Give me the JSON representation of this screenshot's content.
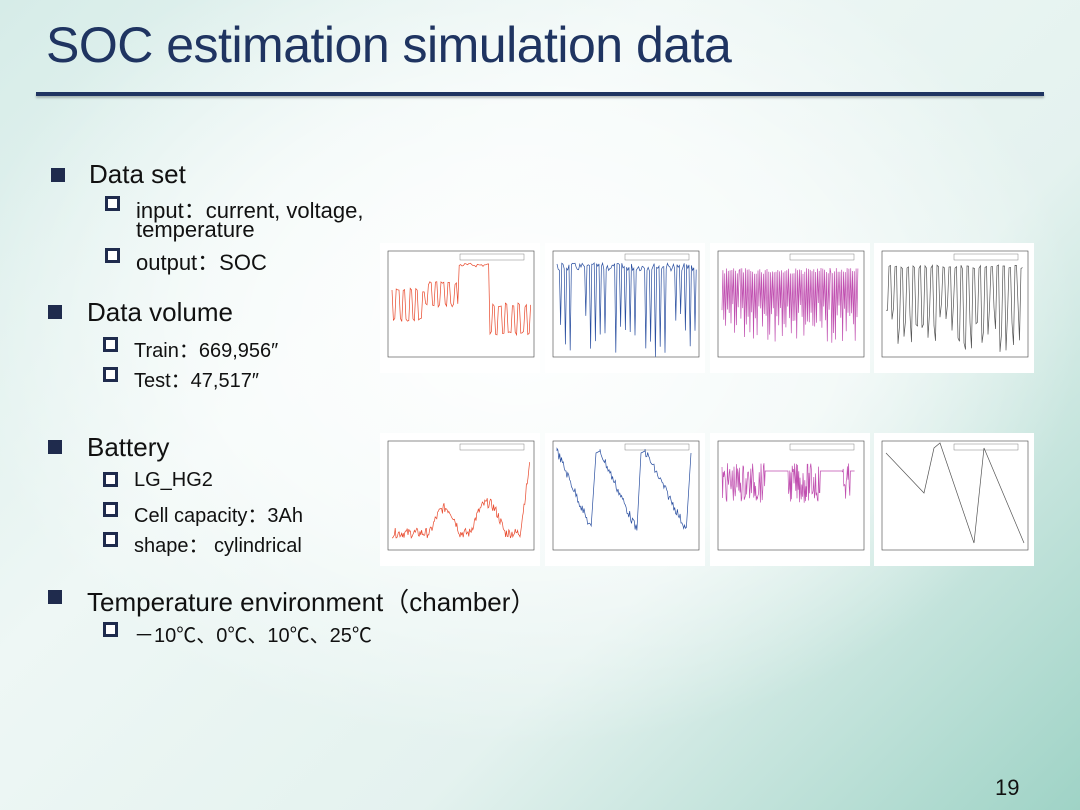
{
  "title": "SOC estimation simulation data",
  "sections": [
    {
      "heading": "Data set",
      "items": [
        "input：current, voltage,",
        "temperature",
        "output：SOC"
      ]
    },
    {
      "heading": "Data volume",
      "items": [
        "Train：669,956″",
        "Test：47,517″"
      ]
    },
    {
      "heading": "Battery",
      "items": [
        "LG_HG2",
        "Cell capacity：3Ah",
        "shape： cylindrical"
      ]
    },
    {
      "heading": "Temperature environment（chamber）",
      "items": [
        "－10℃、0℃、10℃、25℃"
      ]
    }
  ],
  "page_number": "19",
  "colors": {
    "title": "#1f3461",
    "bullet": "#1f2b4d",
    "plot_red": "#e8472a",
    "plot_blue": "#2a4fa0",
    "plot_magenta": "#c04fb0",
    "plot_gray": "#555555"
  }
}
